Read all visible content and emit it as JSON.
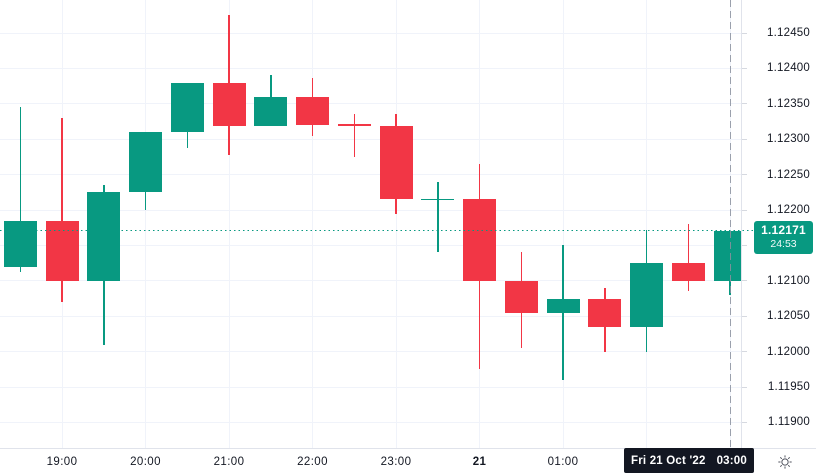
{
  "colors": {
    "up": "#089981",
    "down": "#f23645",
    "grid": "#f0f3fa",
    "axis_border": "#e0e3eb",
    "axis_text": "#131722",
    "dashed_time_line": "#8b919e",
    "price_badge_bg": "#089981",
    "time_badge_bg": "#131722",
    "badge_text": "#ffffff"
  },
  "price_axis": {
    "labels": [
      "1.12450",
      "1.12400",
      "1.12350",
      "1.12300",
      "1.12250",
      "1.12200",
      "1.12150",
      "1.12100",
      "1.12050",
      "1.12000",
      "1.11950",
      "1.11900"
    ],
    "last_price_badge": {
      "price": "1.12171",
      "countdown": "24:53"
    }
  },
  "time_axis": {
    "ticks": [
      {
        "label": "19:00",
        "i": 1
      },
      {
        "label": "20:00",
        "i": 3
      },
      {
        "label": "21:00",
        "i": 5
      },
      {
        "label": "22:00",
        "i": 7
      },
      {
        "label": "23:00",
        "i": 9
      },
      {
        "label": "21",
        "i": 11,
        "emphasis": true
      },
      {
        "label": "01:00",
        "i": 13
      }
    ],
    "crosshair_badge": {
      "date": "Fri 21 Oct '22",
      "time": "03:00"
    }
  },
  "footer": {
    "icon": "sun-theme-toggle"
  },
  "chart_data": {
    "type": "candlestick",
    "interval_minutes": 30,
    "title": "",
    "y_axis": {
      "min": 1.119,
      "max": 1.1245,
      "tick_step": 0.0005,
      "side": "right"
    },
    "x_axis": {
      "visible_labels": [
        "19:00",
        "20:00",
        "21:00",
        "22:00",
        "23:00",
        "21",
        "01:00"
      ],
      "grid": "hourly"
    },
    "grid": true,
    "current_price": 1.12171,
    "countdown": "24:53",
    "current_time_label": "Fri 21 Oct '22 03:00",
    "candles": [
      {
        "time": "18:30",
        "open": 1.1212,
        "high": 1.12345,
        "low": 1.12112,
        "close": 1.12185
      },
      {
        "time": "19:00",
        "open": 1.12185,
        "high": 1.1233,
        "low": 1.1207,
        "close": 1.121
      },
      {
        "time": "19:30",
        "open": 1.121,
        "high": 1.12235,
        "low": 1.1201,
        "close": 1.12225
      },
      {
        "time": "20:00",
        "open": 1.12225,
        "high": 1.1231,
        "low": 1.122,
        "close": 1.1231
      },
      {
        "time": "20:30",
        "open": 1.1231,
        "high": 1.1238,
        "low": 1.12288,
        "close": 1.1238
      },
      {
        "time": "21:00",
        "open": 1.1238,
        "high": 1.12475,
        "low": 1.12278,
        "close": 1.12318
      },
      {
        "time": "21:30",
        "open": 1.12318,
        "high": 1.1239,
        "low": 1.12318,
        "close": 1.1236
      },
      {
        "time": "22:00",
        "open": 1.1236,
        "high": 1.12386,
        "low": 1.12304,
        "close": 1.1232
      },
      {
        "time": "22:30",
        "open": 1.12322,
        "high": 1.12335,
        "low": 1.12275,
        "close": 1.12318
      },
      {
        "time": "23:00",
        "open": 1.12318,
        "high": 1.12335,
        "low": 1.12195,
        "close": 1.12215
      },
      {
        "time": "23:30",
        "open": 1.12214,
        "high": 1.1224,
        "low": 1.1214,
        "close": 1.12216
      },
      {
        "time": "00:00",
        "open": 1.12216,
        "high": 1.12265,
        "low": 1.11975,
        "close": 1.121
      },
      {
        "time": "00:30",
        "open": 1.121,
        "high": 1.1214,
        "low": 1.12005,
        "close": 1.12055
      },
      {
        "time": "01:00",
        "open": 1.12055,
        "high": 1.1215,
        "low": 1.1196,
        "close": 1.12075
      },
      {
        "time": "01:30",
        "open": 1.12075,
        "high": 1.1209,
        "low": 1.12,
        "close": 1.12035
      },
      {
        "time": "02:00",
        "open": 1.12035,
        "high": 1.12172,
        "low": 1.12,
        "close": 1.12125
      },
      {
        "time": "02:30",
        "open": 1.12125,
        "high": 1.1218,
        "low": 1.12085,
        "close": 1.121
      },
      {
        "time": "03:00",
        "open": 1.121,
        "high": 1.12171,
        "low": 1.1208,
        "close": 1.12171
      }
    ]
  }
}
